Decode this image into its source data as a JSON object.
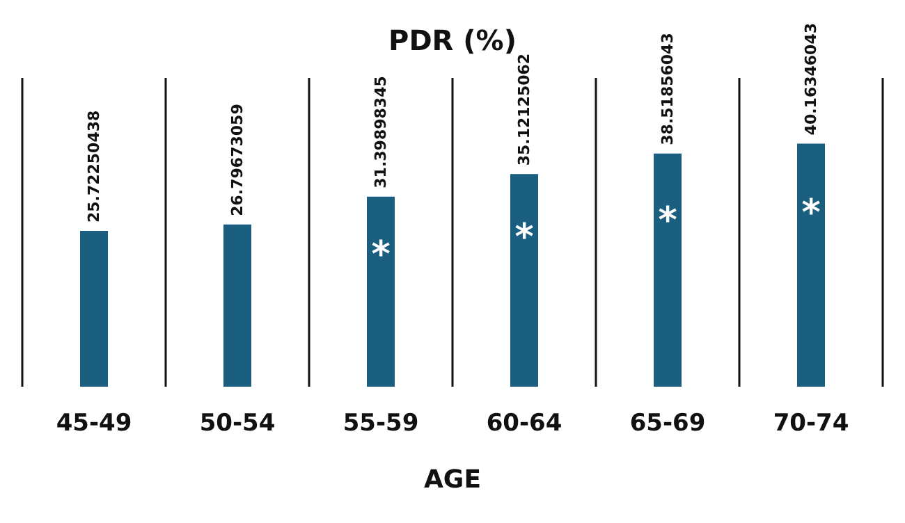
{
  "chart_data": {
    "type": "bar",
    "title": "PDR (%)",
    "xlabel": "AGE",
    "categories": [
      "45-49",
      "50-54",
      "55-59",
      "60-64",
      "65-69",
      "70-74"
    ],
    "values": [
      25.72250438,
      26.79673059,
      31.39898345,
      35.12125062,
      38.51856043,
      40.16346043
    ],
    "color": "#1a5e80",
    "data_labels": true,
    "grid": "x",
    "annotations": [
      "*",
      "*",
      "*",
      "*"
    ]
  }
}
